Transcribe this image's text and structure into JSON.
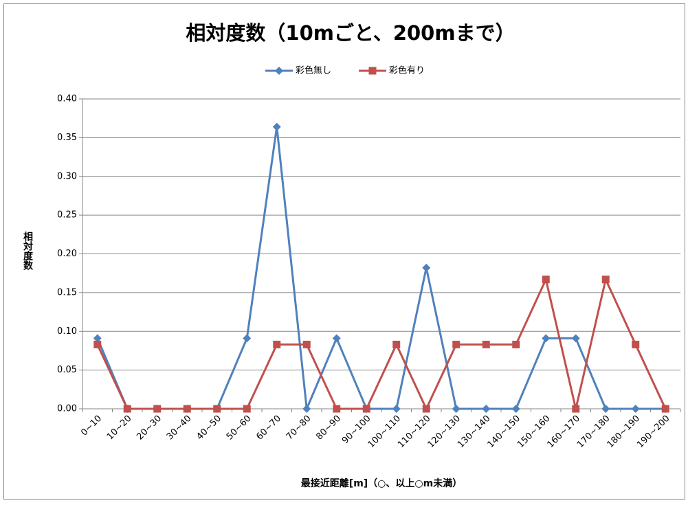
{
  "chart_data": {
    "type": "line",
    "title": "相対度数（10mごと、200mまで）",
    "y_label": "相対度数",
    "x_label": "最接近距離[m]（○、以上○m未満）",
    "categories": [
      "0~10",
      "10~20",
      "20~30",
      "30~40",
      "40~50",
      "50~60",
      "60~70",
      "70~80",
      "80~90",
      "90~100",
      "100~110",
      "110~120",
      "120~130",
      "130~140",
      "140~150",
      "150~160",
      "160~170",
      "170~180",
      "180~190",
      "190~200"
    ],
    "series": [
      {
        "name": "彩色無し",
        "color": "#4f81bd",
        "marker": "diamond",
        "values": [
          0.091,
          0,
          0,
          0,
          0,
          0.091,
          0.364,
          0,
          0.091,
          0,
          0,
          0.182,
          0,
          0,
          0,
          0.091,
          0.091,
          0,
          0,
          0
        ]
      },
      {
        "name": "彩色有り",
        "color": "#c0504d",
        "marker": "square",
        "values": [
          0.083,
          0,
          0,
          0,
          0,
          0,
          0.083,
          0.083,
          0,
          0,
          0.083,
          0,
          0.083,
          0.083,
          0.083,
          0.167,
          0,
          0.167,
          0.083,
          0
        ]
      }
    ],
    "ylim": [
      0,
      0.4
    ],
    "yticks": [
      {
        "value": 0,
        "label": "0.00"
      },
      {
        "value": 0.05,
        "label": "0.05"
      },
      {
        "value": 0.1,
        "label": "0.10"
      },
      {
        "value": 0.15,
        "label": "0.15"
      },
      {
        "value": 0.2,
        "label": "0.20"
      },
      {
        "value": 0.25,
        "label": "0.25"
      },
      {
        "value": 0.3,
        "label": "0.30"
      },
      {
        "value": 0.35,
        "label": "0.35"
      },
      {
        "value": 0.4,
        "label": "0.40"
      }
    ],
    "grid": true,
    "legend": "top"
  }
}
